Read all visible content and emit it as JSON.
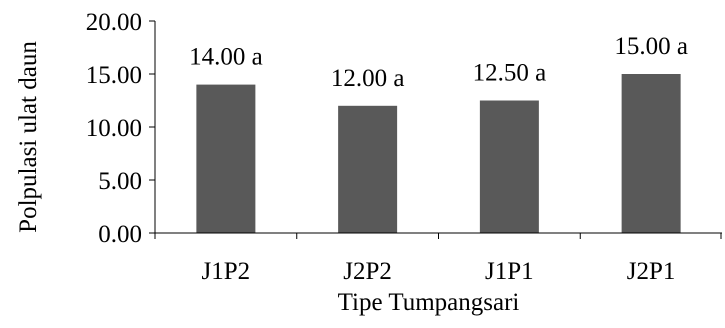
{
  "chart_data": {
    "type": "bar",
    "title": "",
    "xlabel": "Tipe Tumpangsari",
    "ylabel": "Polpulasi ulat daun",
    "categories": [
      "J1P2",
      "J2P2",
      "J1P1",
      "J2P1"
    ],
    "values": [
      14.0,
      12.0,
      12.5,
      15.0
    ],
    "data_labels": [
      "14.00 a",
      "12.00 a",
      "12.50 a",
      "15.00 a"
    ],
    "yticks": [
      "0.00",
      "5.00",
      "10.00",
      "15.00",
      "20.00"
    ],
    "ytick_values": [
      0,
      5,
      10,
      15,
      20
    ],
    "ylim": [
      0,
      20
    ],
    "grid": false,
    "legend": "none",
    "bar_color": "#595959"
  }
}
